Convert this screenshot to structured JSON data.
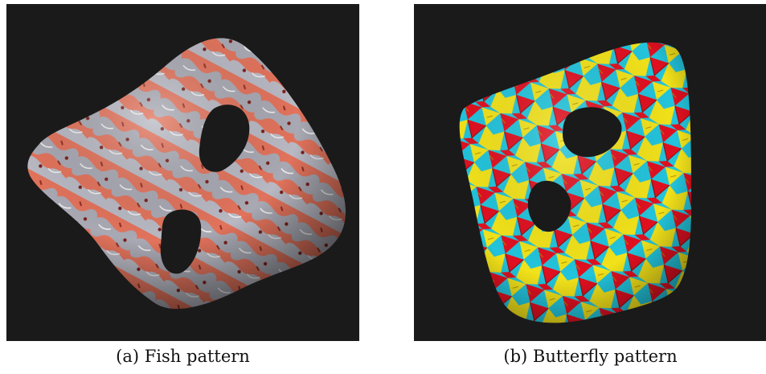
{
  "figures": [
    {
      "id": "a",
      "caption": "(a) Fish pattern",
      "background": "#1a1a1a",
      "colors": {
        "primary": "#e2735c",
        "secondary": "#a9a9b4",
        "accent": "#7a1f18"
      }
    },
    {
      "id": "b",
      "caption": "(b) Butterfly pattern",
      "background": "#1a1a1a",
      "colors": {
        "red": "#e01020",
        "yellow": "#f2e21a",
        "cyan": "#22c4dc",
        "dark": "#8a0a10"
      }
    }
  ]
}
